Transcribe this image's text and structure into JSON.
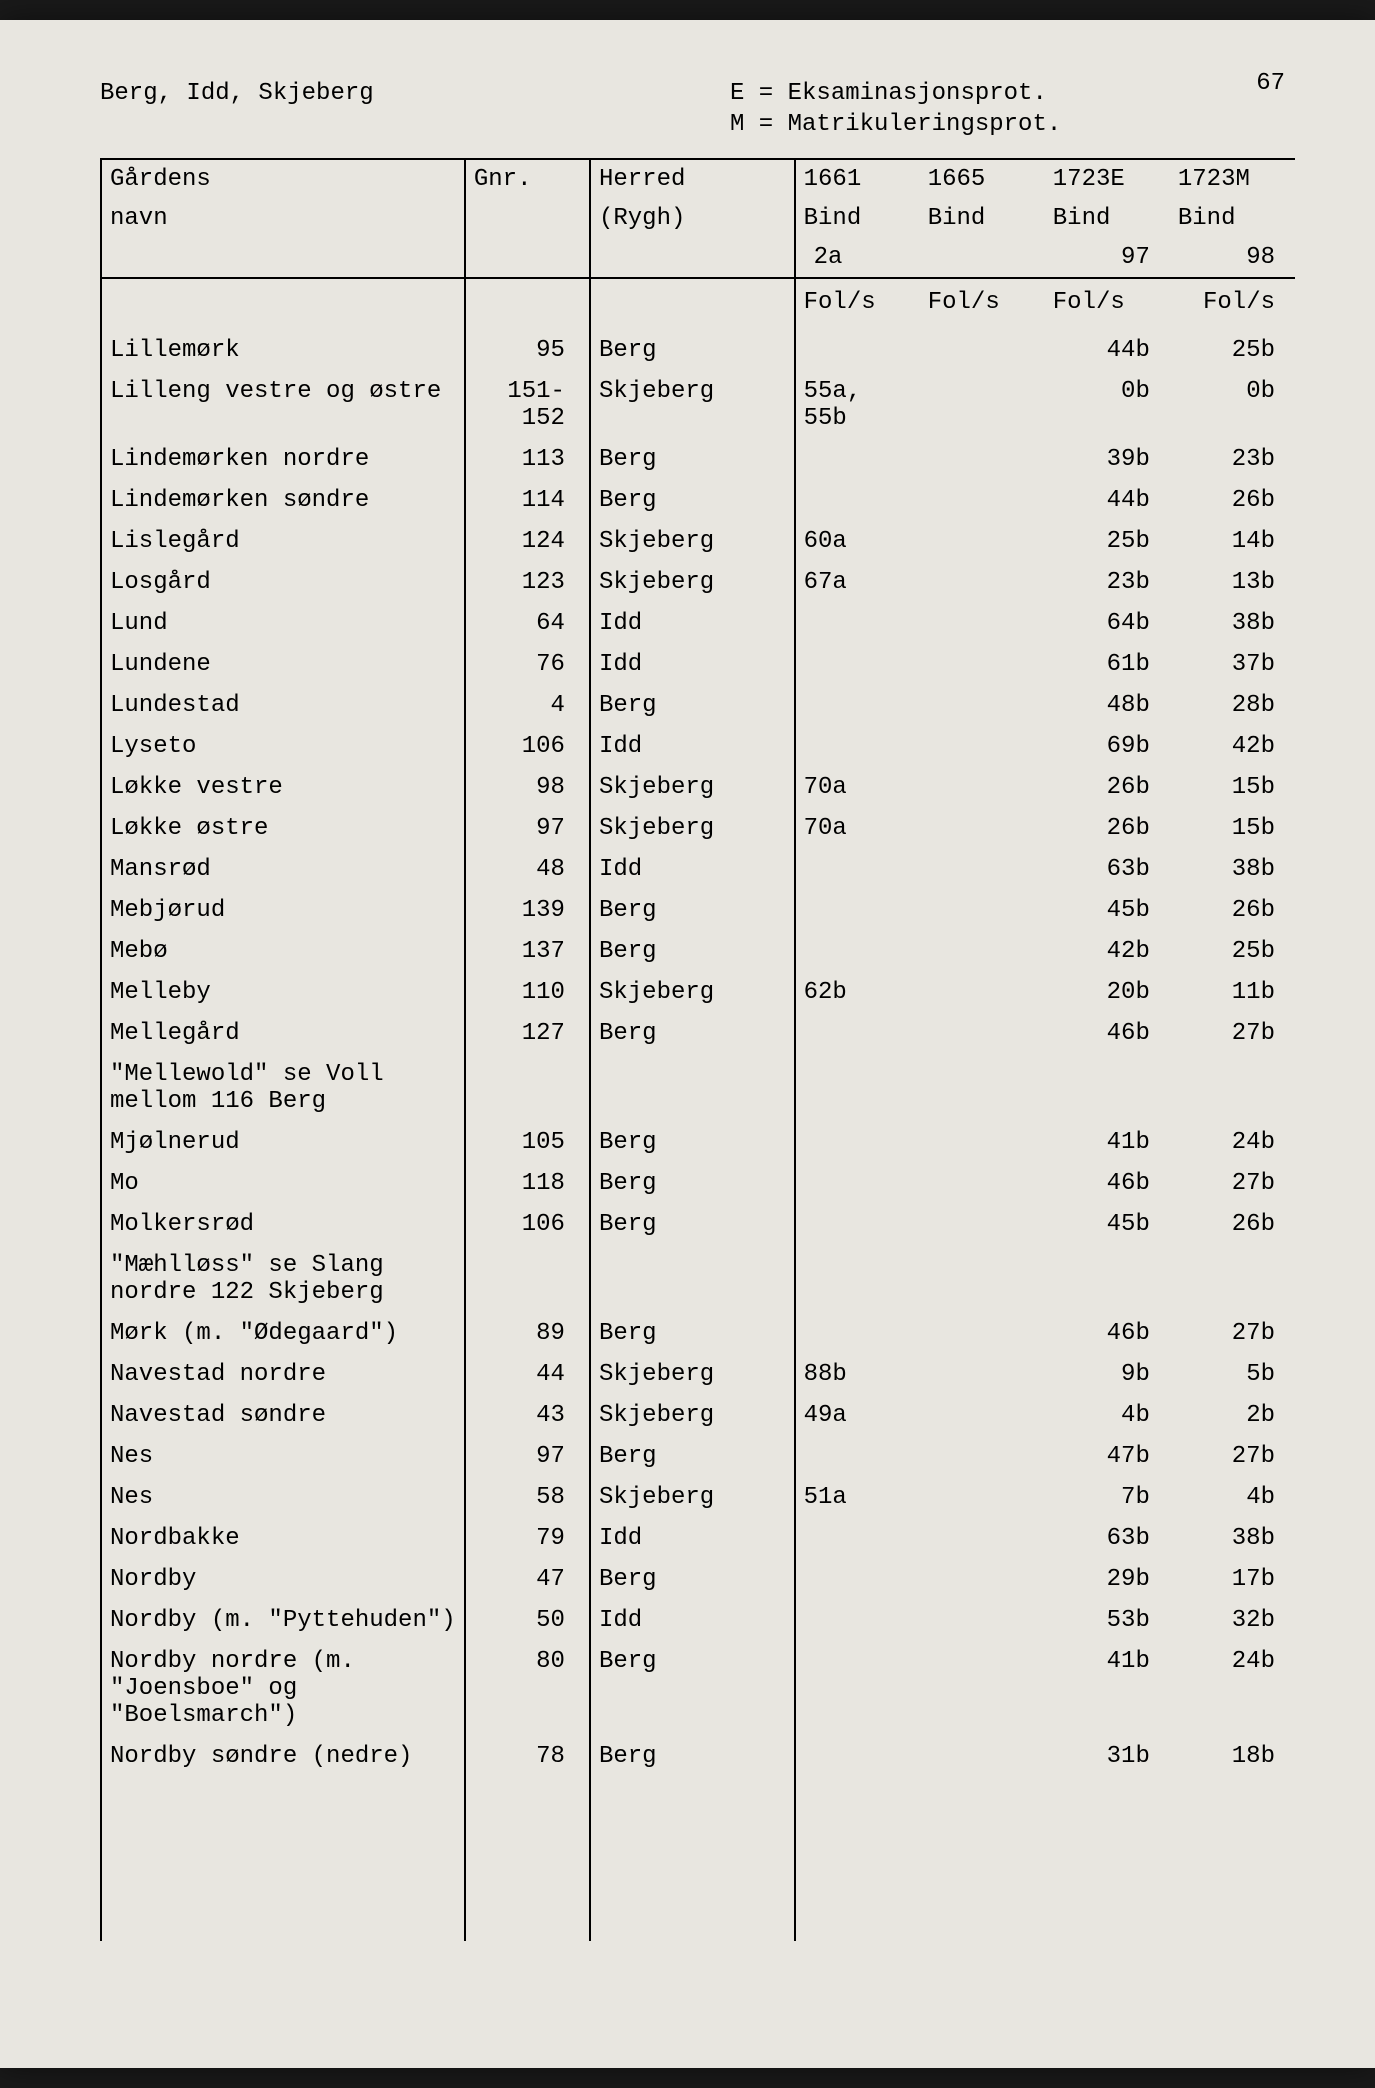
{
  "page_number": "67",
  "header_left": "Berg, Idd, Skjeberg",
  "legend_e": "E = Eksaminasjonsprot.",
  "legend_m": "M = Matrikuleringsprot.",
  "columns": {
    "name_l1": "Gårdens",
    "name_l2": "navn",
    "gnr": "Gnr.",
    "herred_l1": "Herred",
    "herred_l2": "(Rygh)",
    "y1661_l1": "1661",
    "y1661_l2": "Bind",
    "y1661_l3": "2a",
    "y1665_l1": "1665",
    "y1665_l2": "Bind",
    "y1723e_l1": "1723E",
    "y1723e_l2": "Bind",
    "y1723e_l3": "97",
    "y1723m_l1": "1723M",
    "y1723m_l2": "Bind",
    "y1723m_l3": "98",
    "fols": "Fol/s"
  },
  "rows": [
    {
      "name": "Lillemørk",
      "gnr": "95",
      "herred": "Berg",
      "c1661": "",
      "c1665": "",
      "c1723e": "44b",
      "c1723m": "25b"
    },
    {
      "name": "Lilleng vestre og østre",
      "gnr": "151-152",
      "herred": "Skjeberg",
      "c1661": "55a, 55b",
      "c1665": "",
      "c1723e": "0b",
      "c1723m": "0b"
    },
    {
      "name": "Lindemørken nordre",
      "gnr": "113",
      "herred": "Berg",
      "c1661": "",
      "c1665": "",
      "c1723e": "39b",
      "c1723m": "23b"
    },
    {
      "name": "Lindemørken søndre",
      "gnr": "114",
      "herred": "Berg",
      "c1661": "",
      "c1665": "",
      "c1723e": "44b",
      "c1723m": "26b"
    },
    {
      "name": "Lislegård",
      "gnr": "124",
      "herred": "Skjeberg",
      "c1661": "60a",
      "c1665": "",
      "c1723e": "25b",
      "c1723m": "14b"
    },
    {
      "name": "Losgård",
      "gnr": "123",
      "herred": "Skjeberg",
      "c1661": "67a",
      "c1665": "",
      "c1723e": "23b",
      "c1723m": "13b"
    },
    {
      "name": "Lund",
      "gnr": "64",
      "herred": "Idd",
      "c1661": "",
      "c1665": "",
      "c1723e": "64b",
      "c1723m": "38b"
    },
    {
      "name": "Lundene",
      "gnr": "76",
      "herred": "Idd",
      "c1661": "",
      "c1665": "",
      "c1723e": "61b",
      "c1723m": "37b"
    },
    {
      "name": "Lundestad",
      "gnr": "4",
      "herred": "Berg",
      "c1661": "",
      "c1665": "",
      "c1723e": "48b",
      "c1723m": "28b"
    },
    {
      "name": "Lyseto",
      "gnr": "106",
      "herred": "Idd",
      "c1661": "",
      "c1665": "",
      "c1723e": "69b",
      "c1723m": "42b"
    },
    {
      "name": "Løkke vestre",
      "gnr": "98",
      "herred": "Skjeberg",
      "c1661": "70a",
      "c1665": "",
      "c1723e": "26b",
      "c1723m": "15b"
    },
    {
      "name": "Løkke østre",
      "gnr": "97",
      "herred": "Skjeberg",
      "c1661": "70a",
      "c1665": "",
      "c1723e": "26b",
      "c1723m": "15b"
    },
    {
      "name": "Mansrød",
      "gnr": "48",
      "herred": "Idd",
      "c1661": "",
      "c1665": "",
      "c1723e": "63b",
      "c1723m": "38b"
    },
    {
      "name": "Mebjørud",
      "gnr": "139",
      "herred": "Berg",
      "c1661": "",
      "c1665": "",
      "c1723e": "45b",
      "c1723m": "26b"
    },
    {
      "name": "Mebø",
      "gnr": "137",
      "herred": "Berg",
      "c1661": "",
      "c1665": "",
      "c1723e": "42b",
      "c1723m": "25b"
    },
    {
      "name": "Melleby",
      "gnr": "110",
      "herred": "Skjeberg",
      "c1661": "62b",
      "c1665": "",
      "c1723e": "20b",
      "c1723m": "11b"
    },
    {
      "name": "Mellegård",
      "gnr": "127",
      "herred": "Berg",
      "c1661": "",
      "c1665": "",
      "c1723e": "46b",
      "c1723m": "27b"
    },
    {
      "note": "\"Mellewold\" se Voll mellom 116 Berg"
    },
    {
      "name": "Mjølnerud",
      "gnr": "105",
      "herred": "Berg",
      "c1661": "",
      "c1665": "",
      "c1723e": "41b",
      "c1723m": "24b"
    },
    {
      "name": "Mo",
      "gnr": "118",
      "herred": "Berg",
      "c1661": "",
      "c1665": "",
      "c1723e": "46b",
      "c1723m": "27b"
    },
    {
      "name": "Molkersrød",
      "gnr": "106",
      "herred": "Berg",
      "c1661": "",
      "c1665": "",
      "c1723e": "45b",
      "c1723m": "26b"
    },
    {
      "note": "\"Mæhlløss\" se Slang nordre 122 Skjeberg"
    },
    {
      "name": "Mørk (m. \"Ødegaard\")",
      "gnr": "89",
      "herred": "Berg",
      "c1661": "",
      "c1665": "",
      "c1723e": "46b",
      "c1723m": "27b"
    },
    {
      "name": "Navestad nordre",
      "gnr": "44",
      "herred": "Skjeberg",
      "c1661": "88b",
      "c1665": "",
      "c1723e": "9b",
      "c1723m": "5b"
    },
    {
      "name": "Navestad søndre",
      "gnr": "43",
      "herred": "Skjeberg",
      "c1661": "49a",
      "c1665": "",
      "c1723e": "4b",
      "c1723m": "2b"
    },
    {
      "name": "Nes",
      "gnr": "97",
      "herred": "Berg",
      "c1661": "",
      "c1665": "",
      "c1723e": "47b",
      "c1723m": "27b"
    },
    {
      "name": "Nes",
      "gnr": "58",
      "herred": "Skjeberg",
      "c1661": "51a",
      "c1665": "",
      "c1723e": "7b",
      "c1723m": "4b"
    },
    {
      "name": "Nordbakke",
      "gnr": "79",
      "herred": "Idd",
      "c1661": "",
      "c1665": "",
      "c1723e": "63b",
      "c1723m": "38b"
    },
    {
      "name": "Nordby",
      "gnr": "47",
      "herred": "Berg",
      "c1661": "",
      "c1665": "",
      "c1723e": "29b",
      "c1723m": "17b"
    },
    {
      "name": "Nordby (m. \"Pyttehuden\")",
      "gnr": "50",
      "herred": "Idd",
      "c1661": "",
      "c1665": "",
      "c1723e": "53b",
      "c1723m": "32b"
    },
    {
      "name": "Nordby nordre (m. \"Joensboe\" og \"Boelsmarch\")",
      "gnr": "80",
      "herred": "Berg",
      "c1661": "",
      "c1665": "",
      "c1723e": "41b",
      "c1723m": "24b"
    },
    {
      "name": "Nordby søndre (nedre)",
      "gnr": "78",
      "herred": "Berg",
      "c1661": "",
      "c1665": "",
      "c1723e": "31b",
      "c1723m": "18b"
    }
  ],
  "style": {
    "bg": "#e8e6e0",
    "text": "#1a1a1a",
    "border": "#000000",
    "font": "Courier New",
    "fontsize_pt": 18
  }
}
